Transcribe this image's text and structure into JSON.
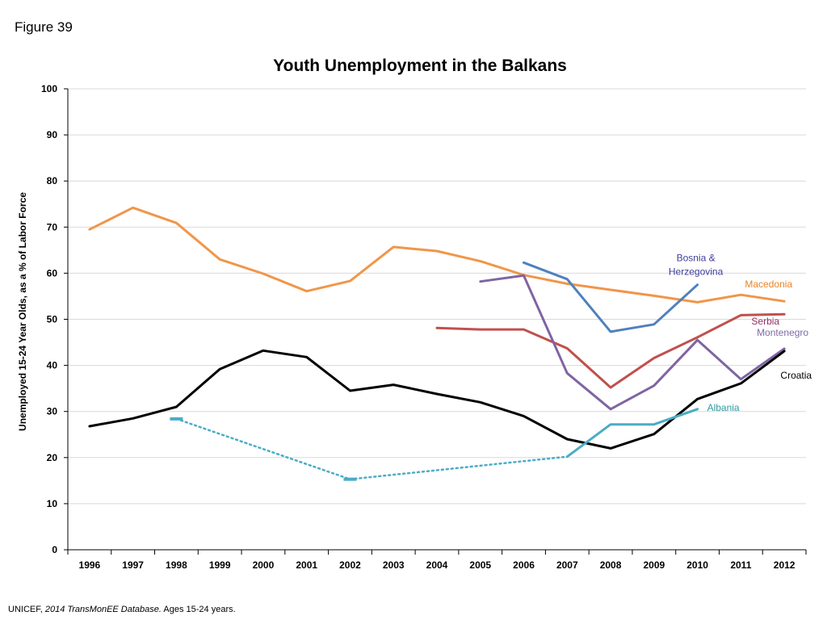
{
  "figure_label": "Figure 39",
  "source_note": {
    "org": "UNICEF, ",
    "database": "2014 TransMonEE Database.",
    "detail": " Ages 15-24 years."
  },
  "chart_data": {
    "type": "line",
    "title": "Youth Unemployment in the Balkans",
    "xlabel": "",
    "ylabel": "Unemployed 15-24 Year Olds, as a % of Labor Force",
    "x": [
      1996,
      1997,
      1998,
      1999,
      2000,
      2001,
      2002,
      2003,
      2004,
      2005,
      2006,
      2007,
      2008,
      2009,
      2010,
      2011,
      2012
    ],
    "x_tick_labels": [
      "1996",
      "1997",
      "1998",
      "1999",
      "2000",
      "2001",
      "2002",
      "2003",
      "2004",
      "2005",
      "2006",
      "2007",
      "2008",
      "2009",
      "2010",
      "2011",
      "2012"
    ],
    "ylim": [
      0,
      100
    ],
    "y_ticks": [
      0,
      10,
      20,
      30,
      40,
      50,
      60,
      70,
      80,
      90,
      100
    ],
    "y_tick_labels": [
      "0",
      "10",
      "20",
      "30",
      "40",
      "50",
      "60",
      "70",
      "80",
      "90",
      "100"
    ],
    "grid": "horizontal",
    "legend": "inline labels at series ends",
    "series": [
      {
        "name": "Macedonia",
        "label_lines": [
          "Macedonia"
        ],
        "color": "#F0964A",
        "values": [
          69.5,
          74.2,
          70.9,
          63.0,
          59.9,
          56.1,
          58.3,
          65.7,
          64.8,
          62.6,
          59.6,
          57.7,
          56.4,
          55.1,
          53.7,
          55.3,
          53.9
        ]
      },
      {
        "name": "Bosnia & Herzegovina",
        "label_lines": [
          "Bosnia &",
          "Herzegovina"
        ],
        "color": "#4F81BD",
        "values": [
          null,
          null,
          null,
          null,
          null,
          null,
          null,
          null,
          null,
          null,
          62.3,
          58.7,
          47.3,
          48.9,
          57.5,
          null,
          null
        ]
      },
      {
        "name": "Serbia",
        "label_lines": [
          "Serbia"
        ],
        "color": "#C0504D",
        "values": [
          null,
          null,
          null,
          null,
          null,
          null,
          null,
          null,
          48.1,
          47.8,
          47.8,
          43.7,
          35.2,
          41.6,
          46.1,
          50.9,
          51.1
        ]
      },
      {
        "name": "Montenegro",
        "label_lines": [
          "Montenegro"
        ],
        "color": "#8064A2",
        "values": [
          null,
          null,
          null,
          null,
          null,
          null,
          null,
          null,
          null,
          58.2,
          59.5,
          38.3,
          30.5,
          35.6,
          45.5,
          37.0,
          43.6
        ]
      },
      {
        "name": "Croatia",
        "label_lines": [
          "Croatia"
        ],
        "color": "#000000",
        "values": [
          26.8,
          28.5,
          31.0,
          39.2,
          43.2,
          41.8,
          34.5,
          35.8,
          33.8,
          32.0,
          29.0,
          24.0,
          22.0,
          25.1,
          32.7,
          36.1,
          43.1
        ]
      },
      {
        "name": "Albania",
        "label_lines": [
          "Albania"
        ],
        "color": "#4BACC6",
        "values": [
          null,
          null,
          28.4,
          null,
          null,
          null,
          15.3,
          null,
          null,
          null,
          null,
          20.2,
          27.2,
          27.2,
          30.5,
          null,
          null
        ],
        "dotted_segments": [
          [
            1998,
            2002
          ],
          [
            2002,
            2007
          ]
        ]
      }
    ]
  }
}
